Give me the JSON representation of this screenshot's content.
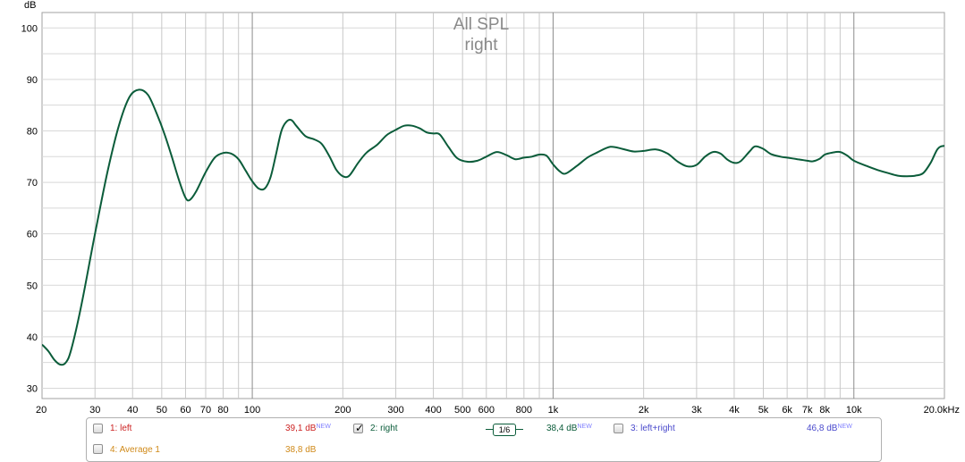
{
  "chart_data": {
    "type": "line",
    "title": "All SPL",
    "subtitle": "right",
    "ylabel": "dB",
    "xscale": "log",
    "xlim": [
      20,
      20000
    ],
    "ylim": [
      28,
      103
    ],
    "grid": true,
    "y_ticks": [
      {
        "value": 30,
        "label": "30"
      },
      {
        "value": 40,
        "label": "40"
      },
      {
        "value": 50,
        "label": "50"
      },
      {
        "value": 60,
        "label": "60"
      },
      {
        "value": 70,
        "label": "70"
      },
      {
        "value": 80,
        "label": "80"
      },
      {
        "value": 90,
        "label": "90"
      },
      {
        "value": 100,
        "label": "100"
      }
    ],
    "x_ticks": [
      {
        "value": 20,
        "label": "20"
      },
      {
        "value": 30,
        "label": "30"
      },
      {
        "value": 40,
        "label": "40"
      },
      {
        "value": 50,
        "label": "50"
      },
      {
        "value": 60,
        "label": "60"
      },
      {
        "value": 70,
        "label": "70"
      },
      {
        "value": 80,
        "label": "80"
      },
      {
        "value": 100,
        "label": "100"
      },
      {
        "value": 200,
        "label": "200"
      },
      {
        "value": 300,
        "label": "300"
      },
      {
        "value": 400,
        "label": "400"
      },
      {
        "value": 500,
        "label": "500"
      },
      {
        "value": 600,
        "label": "600"
      },
      {
        "value": 800,
        "label": "800"
      },
      {
        "value": 1000,
        "label": "1k"
      },
      {
        "value": 2000,
        "label": "2k"
      },
      {
        "value": 3000,
        "label": "3k"
      },
      {
        "value": 4000,
        "label": "4k"
      },
      {
        "value": 5000,
        "label": "5k"
      },
      {
        "value": 6000,
        "label": "6k"
      },
      {
        "value": 7000,
        "label": "7k"
      },
      {
        "value": 8000,
        "label": "8k"
      },
      {
        "value": 10000,
        "label": "10k"
      },
      {
        "value": 20000,
        "label": "20,0kHz"
      }
    ],
    "series": [
      {
        "name": "2: right",
        "color": "#0b5c3a",
        "points": [
          [
            20,
            38.5
          ],
          [
            21,
            37.2
          ],
          [
            22,
            35.5
          ],
          [
            23,
            34.6
          ],
          [
            24,
            35.0
          ],
          [
            25,
            37.5
          ],
          [
            27,
            46
          ],
          [
            30,
            60
          ],
          [
            33,
            72
          ],
          [
            36,
            81
          ],
          [
            39,
            86.5
          ],
          [
            42,
            88
          ],
          [
            45,
            87
          ],
          [
            48,
            83.5
          ],
          [
            51,
            79.5
          ],
          [
            54,
            75
          ],
          [
            57,
            70.5
          ],
          [
            60,
            67
          ],
          [
            62,
            66.6
          ],
          [
            65,
            68.2
          ],
          [
            70,
            72
          ],
          [
            75,
            74.8
          ],
          [
            80,
            75.7
          ],
          [
            85,
            75.6
          ],
          [
            90,
            74.5
          ],
          [
            95,
            72.3
          ],
          [
            100,
            70.2
          ],
          [
            105,
            68.8
          ],
          [
            110,
            68.8
          ],
          [
            115,
            71
          ],
          [
            120,
            75.5
          ],
          [
            125,
            80
          ],
          [
            130,
            81.8
          ],
          [
            135,
            82.1
          ],
          [
            140,
            81
          ],
          [
            150,
            79
          ],
          [
            160,
            78.4
          ],
          [
            170,
            77.5
          ],
          [
            180,
            75.2
          ],
          [
            190,
            72.5
          ],
          [
            200,
            71.2
          ],
          [
            210,
            71.3
          ],
          [
            225,
            73.8
          ],
          [
            240,
            75.8
          ],
          [
            260,
            77.3
          ],
          [
            280,
            79.2
          ],
          [
            300,
            80.2
          ],
          [
            320,
            81
          ],
          [
            340,
            81
          ],
          [
            360,
            80.5
          ],
          [
            380,
            79.7
          ],
          [
            400,
            79.5
          ],
          [
            420,
            79.3
          ],
          [
            450,
            76.8
          ],
          [
            480,
            74.7
          ],
          [
            520,
            74
          ],
          [
            560,
            74.2
          ],
          [
            600,
            75
          ],
          [
            650,
            75.9
          ],
          [
            700,
            75.3
          ],
          [
            750,
            74.5
          ],
          [
            800,
            74.8
          ],
          [
            850,
            75
          ],
          [
            900,
            75.4
          ],
          [
            950,
            75.2
          ],
          [
            1000,
            73.5
          ],
          [
            1050,
            72.2
          ],
          [
            1100,
            71.7
          ],
          [
            1200,
            73.2
          ],
          [
            1300,
            74.8
          ],
          [
            1400,
            75.8
          ],
          [
            1550,
            76.9
          ],
          [
            1700,
            76.5
          ],
          [
            1850,
            76
          ],
          [
            2000,
            76.1
          ],
          [
            2200,
            76.4
          ],
          [
            2400,
            75.6
          ],
          [
            2600,
            74
          ],
          [
            2800,
            73.1
          ],
          [
            3000,
            73.4
          ],
          [
            3200,
            75
          ],
          [
            3400,
            75.9
          ],
          [
            3600,
            75.6
          ],
          [
            3800,
            74.4
          ],
          [
            4000,
            73.8
          ],
          [
            4200,
            74.1
          ],
          [
            4500,
            76
          ],
          [
            4700,
            77
          ],
          [
            5000,
            76.5
          ],
          [
            5300,
            75.5
          ],
          [
            5700,
            75
          ],
          [
            6000,
            74.8
          ],
          [
            6500,
            74.5
          ],
          [
            7000,
            74.2
          ],
          [
            7300,
            74.1
          ],
          [
            7700,
            74.6
          ],
          [
            8000,
            75.4
          ],
          [
            8500,
            75.8
          ],
          [
            9000,
            75.9
          ],
          [
            9500,
            75.2
          ],
          [
            10000,
            74.2
          ],
          [
            11000,
            73.2
          ],
          [
            12000,
            72.4
          ],
          [
            13000,
            71.8
          ],
          [
            14000,
            71.3
          ],
          [
            15000,
            71.2
          ],
          [
            16000,
            71.3
          ],
          [
            17000,
            71.8
          ],
          [
            18000,
            73.8
          ],
          [
            19000,
            76.5
          ],
          [
            20000,
            77.1
          ],
          [
            21000,
            76.7
          ]
        ]
      }
    ]
  },
  "legend": {
    "items": [
      {
        "label": "1: left",
        "value": "39,1 dB",
        "new": "NEW",
        "checked": false,
        "color": "#cc2222"
      },
      {
        "label": "2: right",
        "value": "38,4 dB",
        "new": "NEW",
        "checked": true,
        "color": "#0b5c3a"
      },
      {
        "label": "3: left+right",
        "value": "46,8 dB",
        "new": "NEW",
        "checked": false,
        "color": "#4a4acc"
      },
      {
        "label": "4: Average 1",
        "value": "38,8 dB",
        "checked": false,
        "color": "#d08a1a"
      }
    ],
    "smoothing": "1/6",
    "check_mark": "✓"
  }
}
